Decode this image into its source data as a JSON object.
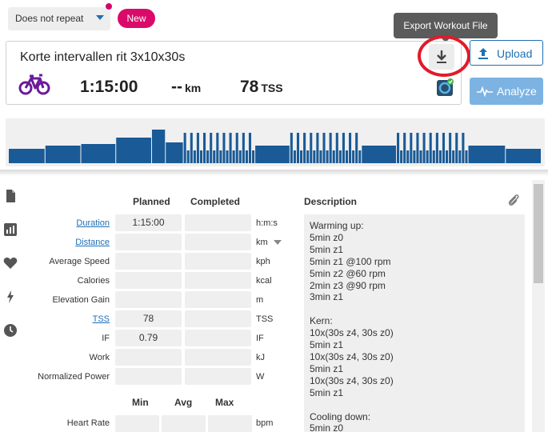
{
  "top": {
    "repeat_value": "Does not repeat",
    "new_label": "New",
    "tooltip": "Export Workout File"
  },
  "workout": {
    "title": "Korte intervallen rit 3x10x30s",
    "duration": "1:15:00",
    "distance": "--",
    "distance_unit": "km",
    "tss": "78",
    "tss_unit": "TSS"
  },
  "actions": {
    "upload": "Upload",
    "analyze": "Analyze"
  },
  "colors": {
    "accent": "#1f6fb4",
    "bike": "#6a1b9a",
    "badge": "#d90a6a",
    "highlight": "#e11a2a"
  },
  "rail": [
    "file-icon",
    "chart-icon",
    "heart-icon",
    "bolt-icon",
    "clock-icon"
  ],
  "table": {
    "col_planned": "Planned",
    "col_completed": "Completed",
    "rows": [
      {
        "label": "Duration",
        "planned": "1:15:00",
        "unit": "h:m:s",
        "link": true
      },
      {
        "label": "Distance",
        "planned": "",
        "unit": "km",
        "link": true,
        "dropdown": true
      },
      {
        "label": "Average Speed",
        "planned": "",
        "unit": "kph",
        "link": false
      },
      {
        "label": "Calories",
        "planned": "",
        "unit": "kcal",
        "link": false
      },
      {
        "label": "Elevation Gain",
        "planned": "",
        "unit": "m",
        "link": false
      },
      {
        "label": "TSS",
        "planned": "78",
        "unit": "TSS",
        "link": true
      },
      {
        "label": "IF",
        "planned": "0.79",
        "unit": "IF",
        "link": false
      },
      {
        "label": "Work",
        "planned": "",
        "unit": "kJ",
        "link": false
      },
      {
        "label": "Normalized Power",
        "planned": "",
        "unit": "W",
        "link": false
      }
    ],
    "col_min": "Min",
    "col_avg": "Avg",
    "col_max": "Max",
    "hr_label": "Heart Rate",
    "hr_unit": "bpm"
  },
  "description": {
    "heading": "Description",
    "text": "Warming up:\n5min z0\n5min z1\n5min z1 @100 rpm\n5min z2 @60 rpm\n2min z3 @90 rpm\n3min z1\n\nKern:\n10x(30s z4, 30s z0)\n5min z1\n10x(30s z4, 30s z0)\n5min z1\n10x(30s z4, 30s z0)\n5min z1\n\nCooling down:\n5min z0"
  }
}
